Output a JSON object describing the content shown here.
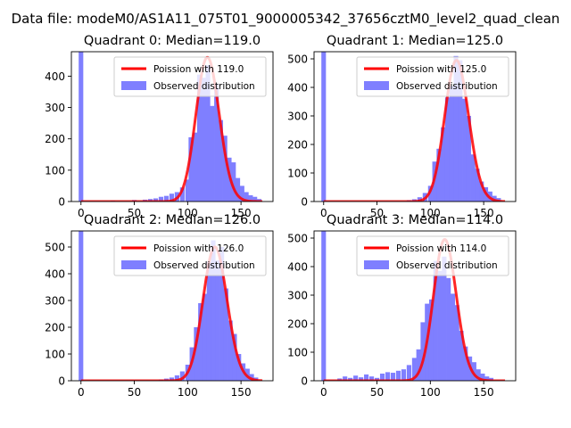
{
  "figure": {
    "suptitle": "Data file: modeM0/AS1A11_075T01_9000005342_37656cztM0_level2_quad_clean"
  },
  "colors": {
    "bar": "#7f7fff",
    "bar_edge": "#7f7fff",
    "fit_line": "#ff0000",
    "frame": "#000000",
    "background": "#ffffff",
    "legend_edge": "#cccccc"
  },
  "chart_data": [
    {
      "type": "histogram+line",
      "title": "Quadrant 0: Median=119.0",
      "xlim": [
        -9,
        180
      ],
      "ylim": [
        0,
        478
      ],
      "xticks": [
        0,
        50,
        100,
        150
      ],
      "yticks": [
        0,
        100,
        200,
        300,
        400
      ],
      "legend": {
        "placement": "upper-right",
        "line_label": "Poission with 119.0",
        "bar_label": "Observed distribution"
      },
      "poisson_mean": 119.0,
      "poisson_peak": 460,
      "bin_width": 4.3,
      "bins": [
        {
          "x": 0,
          "count": 478
        },
        {
          "x": 30,
          "count": 3
        },
        {
          "x": 50,
          "count": 5
        },
        {
          "x": 60,
          "count": 6
        },
        {
          "x": 65,
          "count": 8
        },
        {
          "x": 70,
          "count": 10
        },
        {
          "x": 75,
          "count": 15
        },
        {
          "x": 80,
          "count": 18
        },
        {
          "x": 85,
          "count": 25
        },
        {
          "x": 90,
          "count": 30
        },
        {
          "x": 95,
          "count": 45
        },
        {
          "x": 100,
          "count": 70
        },
        {
          "x": 103,
          "count": 205
        },
        {
          "x": 107,
          "count": 220
        },
        {
          "x": 111,
          "count": 405
        },
        {
          "x": 115,
          "count": 395
        },
        {
          "x": 119,
          "count": 435
        },
        {
          "x": 123,
          "count": 305
        },
        {
          "x": 127,
          "count": 375
        },
        {
          "x": 131,
          "count": 260
        },
        {
          "x": 135,
          "count": 210
        },
        {
          "x": 139,
          "count": 140
        },
        {
          "x": 143,
          "count": 125
        },
        {
          "x": 147,
          "count": 75
        },
        {
          "x": 151,
          "count": 50
        },
        {
          "x": 155,
          "count": 30
        },
        {
          "x": 159,
          "count": 20
        },
        {
          "x": 163,
          "count": 15
        },
        {
          "x": 167,
          "count": 8
        }
      ]
    },
    {
      "type": "histogram+line",
      "title": "Quadrant 1: Median=125.0",
      "xlim": [
        -9,
        180
      ],
      "ylim": [
        0,
        525
      ],
      "xticks": [
        0,
        50,
        100,
        150
      ],
      "yticks": [
        0,
        100,
        200,
        300,
        400,
        500
      ],
      "legend": {
        "placement": "upper-right",
        "line_label": "Poission with 125.0",
        "bar_label": "Observed distribution"
      },
      "poisson_mean": 125.0,
      "poisson_peak": 495,
      "bin_width": 4.3,
      "bins": [
        {
          "x": 0,
          "count": 525
        },
        {
          "x": 80,
          "count": 5
        },
        {
          "x": 85,
          "count": 8
        },
        {
          "x": 90,
          "count": 15
        },
        {
          "x": 95,
          "count": 30
        },
        {
          "x": 100,
          "count": 55
        },
        {
          "x": 104,
          "count": 140
        },
        {
          "x": 108,
          "count": 185
        },
        {
          "x": 112,
          "count": 260
        },
        {
          "x": 116,
          "count": 365
        },
        {
          "x": 120,
          "count": 405
        },
        {
          "x": 124,
          "count": 510
        },
        {
          "x": 128,
          "count": 495
        },
        {
          "x": 132,
          "count": 360
        },
        {
          "x": 136,
          "count": 300
        },
        {
          "x": 140,
          "count": 165
        },
        {
          "x": 144,
          "count": 115
        },
        {
          "x": 148,
          "count": 70
        },
        {
          "x": 152,
          "count": 50
        },
        {
          "x": 156,
          "count": 35
        },
        {
          "x": 160,
          "count": 20
        },
        {
          "x": 164,
          "count": 12
        }
      ]
    },
    {
      "type": "histogram+line",
      "title": "Quadrant 2: Median=126.0",
      "xlim": [
        -9,
        180
      ],
      "ylim": [
        0,
        560
      ],
      "xticks": [
        0,
        50,
        100,
        150
      ],
      "yticks": [
        0,
        100,
        200,
        300,
        400,
        500
      ],
      "legend": {
        "placement": "upper-right",
        "line_label": "Poission with 126.0",
        "bar_label": "Observed distribution"
      },
      "poisson_mean": 126.0,
      "poisson_peak": 500,
      "bin_width": 4.3,
      "bins": [
        {
          "x": 0,
          "count": 560
        },
        {
          "x": 75,
          "count": 5
        },
        {
          "x": 80,
          "count": 8
        },
        {
          "x": 85,
          "count": 12
        },
        {
          "x": 90,
          "count": 20
        },
        {
          "x": 95,
          "count": 35
        },
        {
          "x": 100,
          "count": 60
        },
        {
          "x": 104,
          "count": 125
        },
        {
          "x": 108,
          "count": 200
        },
        {
          "x": 112,
          "count": 290
        },
        {
          "x": 116,
          "count": 325
        },
        {
          "x": 120,
          "count": 445
        },
        {
          "x": 124,
          "count": 525
        },
        {
          "x": 128,
          "count": 450
        },
        {
          "x": 132,
          "count": 500
        },
        {
          "x": 136,
          "count": 345
        },
        {
          "x": 140,
          "count": 225
        },
        {
          "x": 144,
          "count": 175
        },
        {
          "x": 148,
          "count": 100
        },
        {
          "x": 152,
          "count": 65
        },
        {
          "x": 156,
          "count": 45
        },
        {
          "x": 160,
          "count": 25
        },
        {
          "x": 164,
          "count": 12
        }
      ]
    },
    {
      "type": "histogram+line",
      "title": "Quadrant 3: Median=114.0",
      "xlim": [
        -9,
        180
      ],
      "ylim": [
        0,
        525
      ],
      "xticks": [
        0,
        50,
        100,
        150
      ],
      "yticks": [
        0,
        100,
        200,
        300,
        400,
        500
      ],
      "legend": {
        "placement": "upper-right",
        "line_label": "Poission with 114.0",
        "bar_label": "Observed distribution"
      },
      "poisson_mean": 114.0,
      "poisson_peak": 495,
      "bin_width": 4.3,
      "bins": [
        {
          "x": 0,
          "count": 525
        },
        {
          "x": 15,
          "count": 8
        },
        {
          "x": 20,
          "count": 15
        },
        {
          "x": 25,
          "count": 10
        },
        {
          "x": 30,
          "count": 18
        },
        {
          "x": 35,
          "count": 12
        },
        {
          "x": 40,
          "count": 22
        },
        {
          "x": 45,
          "count": 15
        },
        {
          "x": 50,
          "count": 10
        },
        {
          "x": 55,
          "count": 25
        },
        {
          "x": 60,
          "count": 30
        },
        {
          "x": 65,
          "count": 28
        },
        {
          "x": 70,
          "count": 35
        },
        {
          "x": 75,
          "count": 40
        },
        {
          "x": 80,
          "count": 55
        },
        {
          "x": 85,
          "count": 80
        },
        {
          "x": 89,
          "count": 110
        },
        {
          "x": 93,
          "count": 205
        },
        {
          "x": 97,
          "count": 270
        },
        {
          "x": 101,
          "count": 285
        },
        {
          "x": 105,
          "count": 420
        },
        {
          "x": 109,
          "count": 385
        },
        {
          "x": 113,
          "count": 435
        },
        {
          "x": 117,
          "count": 360
        },
        {
          "x": 121,
          "count": 305
        },
        {
          "x": 125,
          "count": 265
        },
        {
          "x": 129,
          "count": 175
        },
        {
          "x": 133,
          "count": 120
        },
        {
          "x": 137,
          "count": 85
        },
        {
          "x": 141,
          "count": 65
        },
        {
          "x": 145,
          "count": 40
        },
        {
          "x": 149,
          "count": 25
        },
        {
          "x": 153,
          "count": 15
        },
        {
          "x": 157,
          "count": 10
        }
      ]
    }
  ]
}
